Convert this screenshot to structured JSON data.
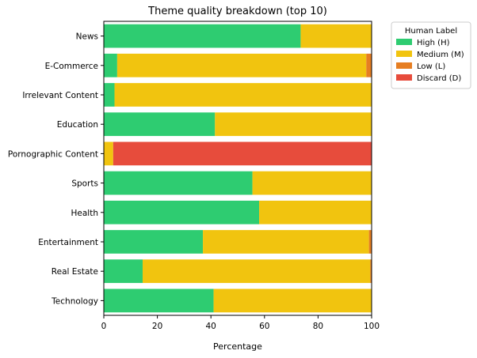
{
  "chart_data": {
    "type": "bar",
    "orientation": "horizontal",
    "stacked": true,
    "title": "Theme quality breakdown (top 10)",
    "xlabel": "Percentage",
    "ylabel": "",
    "xlim": [
      0,
      100
    ],
    "xticks": [
      0,
      20,
      40,
      60,
      80,
      100
    ],
    "grid": false,
    "legend": {
      "title": "Human Label",
      "placement": "outside-top-right"
    },
    "categories": [
      "News",
      "E-Commerce",
      "Irrelevant Content",
      "Education",
      "Pornographic Content",
      "Sports",
      "Health",
      "Entertainment",
      "Real Estate",
      "Technology"
    ],
    "series": [
      {
        "name": "High (H)",
        "color": "#2ecc71",
        "values": [
          73.5,
          5.0,
          4.0,
          41.5,
          0.0,
          55.5,
          58.0,
          37.0,
          14.5,
          41.0
        ]
      },
      {
        "name": "Medium (M)",
        "color": "#f1c40f",
        "values": [
          26.5,
          93.0,
          96.0,
          58.5,
          3.5,
          44.5,
          42.0,
          62.0,
          85.0,
          59.0
        ]
      },
      {
        "name": "Low (L)",
        "color": "#e67e22",
        "values": [
          0.0,
          2.0,
          0.0,
          0.0,
          0.0,
          0.0,
          0.0,
          1.0,
          0.5,
          0.0
        ]
      },
      {
        "name": "Discard (D)",
        "color": "#e74c3c",
        "values": [
          0.0,
          0.0,
          0.0,
          0.0,
          96.5,
          0.0,
          0.0,
          0.0,
          0.0,
          0.0
        ]
      }
    ]
  }
}
